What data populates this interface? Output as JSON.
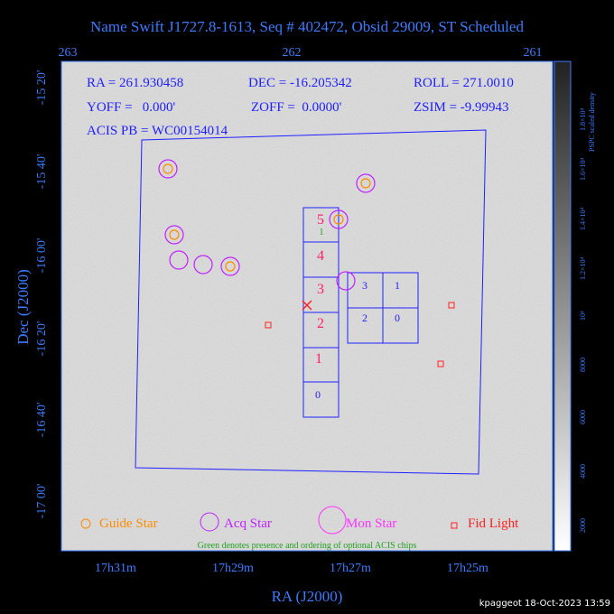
{
  "header": {
    "title": "Name Swift J1727.8-1613, Seq # 402472, Obsid 29009, ST Scheduled"
  },
  "axes": {
    "top_ticks": [
      "263",
      "262",
      "261"
    ],
    "left_ticks": [
      "-15 20'",
      "-15 40'",
      "-16 00'",
      "-16 20'",
      "-16 40'",
      "-17 00'"
    ],
    "bottom_ticks": [
      "17h31m",
      "17h29m",
      "17h27m",
      "17h25m"
    ],
    "x_label": "RA (J2000)",
    "y_label": "Dec (J2000)"
  },
  "info": {
    "ra": "RA = 261.930458",
    "dec": "DEC = -16.205342",
    "roll": "ROLL = 271.0010",
    "yoff": "YOFF =   0.000'",
    "zoff": "ZOFF =  0.0000'",
    "zsim": "ZSIM = -9.99943",
    "acis": "ACIS PB = WC00154014"
  },
  "chips": {
    "column": [
      "5",
      "4",
      "3",
      "2",
      "1",
      "0"
    ],
    "optional": "1",
    "block": [
      "3",
      "1",
      "2",
      "0"
    ]
  },
  "colorbar": {
    "ticks": [
      "2000",
      "4000",
      "6000",
      "8000",
      "10⁴",
      "1.2×10⁴",
      "1.4×10⁴",
      "1.6×10⁴",
      "1.8×10⁴"
    ],
    "label": "PSPC scaled density"
  },
  "legend": {
    "guide": "Guide Star",
    "acq": "Acq Star",
    "mon": "Mon Star",
    "fid": "Fid Light",
    "note": "Green denotes presence and ordering of optional ACIS chips"
  },
  "footer": "kpaggeot 18-Oct-2023 13:59"
}
